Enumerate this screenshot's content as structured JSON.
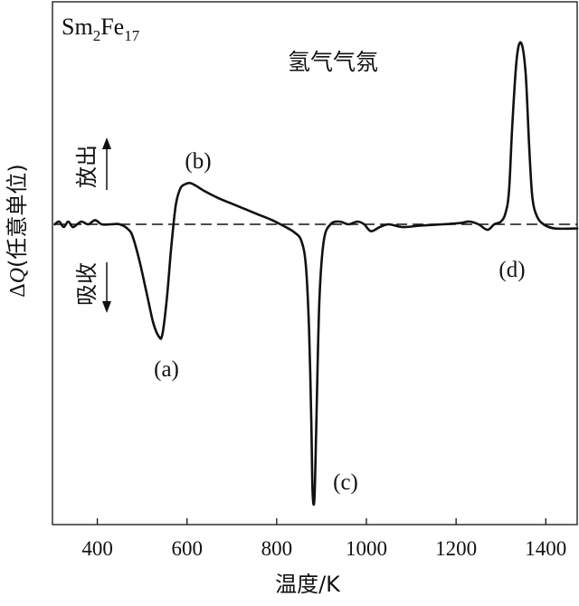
{
  "chart_data": {
    "type": "line",
    "sample_label": {
      "base1": "Sm",
      "sub1": "2",
      "base2": "Fe",
      "sub2": "17"
    },
    "annotation": "氢气气氛",
    "xlabel": "温度/K",
    "ylabel": {
      "delta": "Δ",
      "q": "Q",
      "rest": "(任意单位)"
    },
    "xlim": [
      300,
      1470
    ],
    "ylim": [
      -1.0,
      0.65
    ],
    "xticks": [
      400,
      600,
      800,
      1000,
      1200,
      1400
    ],
    "xtick_labels": [
      "400",
      "600",
      "800",
      "1000",
      "1200",
      "1400"
    ],
    "baseline": 0,
    "direction_labels": {
      "up": "放出",
      "down": "吸收"
    },
    "peak_labels": [
      {
        "label": "(a)",
        "x": 545,
        "y": -0.41
      },
      {
        "label": "(b)",
        "x": 605,
        "y": 0.14
      },
      {
        "label": "(c)",
        "x": 880,
        "y": -1.0
      },
      {
        "label": "(d)",
        "x": 1345,
        "y": 0.66
      }
    ],
    "series": [
      {
        "style": "solid",
        "x": [
          305,
          315,
          325,
          335,
          345,
          355,
          365,
          380,
          395,
          410,
          430,
          450,
          470,
          480,
          495,
          510,
          525,
          538,
          545,
          555,
          565,
          575,
          585,
          595,
          607,
          620,
          640,
          670,
          700,
          730,
          760,
          790,
          820,
          840,
          855,
          865,
          872,
          877,
          880,
          884,
          888,
          895,
          905,
          920,
          940,
          960,
          980,
          995,
          1010,
          1030,
          1050,
          1080,
          1120,
          1170,
          1210,
          1230,
          1250,
          1270,
          1285,
          1300,
          1310,
          1318,
          1325,
          1335,
          1345,
          1355,
          1363,
          1370,
          1380,
          1395,
          1420,
          1470
        ],
        "y": [
          0.0,
          0.01,
          -0.01,
          0.01,
          -0.01,
          0.0,
          0.01,
          0.0,
          0.015,
          0.0,
          0.0,
          0.0,
          -0.02,
          -0.05,
          -0.14,
          -0.25,
          -0.36,
          -0.41,
          -0.4,
          -0.27,
          -0.08,
          0.07,
          0.13,
          0.145,
          0.15,
          0.14,
          0.12,
          0.095,
          0.075,
          0.055,
          0.035,
          0.015,
          -0.01,
          -0.03,
          -0.06,
          -0.15,
          -0.38,
          -0.7,
          -0.97,
          -1.0,
          -0.75,
          -0.28,
          -0.06,
          0.0,
          0.01,
          0.0,
          0.01,
          0.0,
          -0.025,
          -0.01,
          0.0,
          -0.01,
          -0.005,
          0.0,
          0.005,
          0.01,
          0.0,
          -0.02,
          0.0,
          0.01,
          0.04,
          0.12,
          0.35,
          0.6,
          0.66,
          0.55,
          0.28,
          0.1,
          0.03,
          0.0,
          -0.015,
          -0.015
        ]
      },
      {
        "style": "dashed",
        "x": [
          305,
          1470
        ],
        "y": [
          0,
          0
        ]
      }
    ]
  }
}
